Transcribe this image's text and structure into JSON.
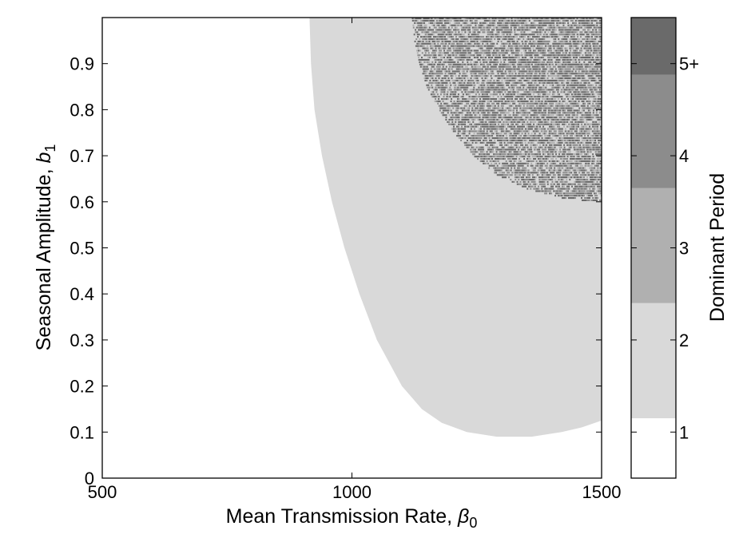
{
  "chart_data": {
    "type": "heatmap",
    "title": "",
    "xlabel": "Mean Transmission Rate, ",
    "xlabel_symbol": "β",
    "xlabel_subscript": "0",
    "ylabel": "Seasonal Amplitude, ",
    "ylabel_symbol": "b",
    "ylabel_subscript": "1",
    "xlim": [
      500,
      1500
    ],
    "ylim": [
      0,
      1
    ],
    "xticks": [
      500,
      1000,
      1500
    ],
    "xtick_labels": [
      "500",
      "1000",
      "1500"
    ],
    "yticks": [
      0,
      0.1,
      0.2,
      0.3,
      0.4,
      0.5,
      0.6,
      0.7,
      0.8,
      0.9
    ],
    "ytick_labels": [
      "0",
      "0.1",
      "0.2",
      "0.3",
      "0.4",
      "0.5",
      "0.6",
      "0.7",
      "0.8",
      "0.9"
    ],
    "grid": false,
    "colorbar": {
      "label": "Dominant Period",
      "ticks": [
        1,
        2,
        3,
        4,
        5
      ],
      "tick_labels": [
        "1",
        "2",
        "3",
        "4",
        "5+"
      ],
      "colors": [
        "#ffffff",
        "#d9d9d9",
        "#b0b0b0",
        "#8c8c8c",
        "#6a6a6a"
      ]
    },
    "regions": [
      {
        "period": 1,
        "description_boundary": "outside the period-2 boundary"
      },
      {
        "period": 2,
        "boundary_b1_vs_b0": {
          "b1": [
            1.0,
            0.9,
            0.8,
            0.7,
            0.6,
            0.5,
            0.4,
            0.3,
            0.2,
            0.15,
            0.12,
            0.1,
            0.09,
            0.09,
            0.1,
            0.11,
            0.125
          ],
          "b0": [
            915,
            918,
            925,
            940,
            960,
            985,
            1015,
            1050,
            1100,
            1140,
            1180,
            1230,
            1290,
            1360,
            1420,
            1460,
            1500
          ]
        }
      },
      {
        "period": "mixed (4 / 5+)",
        "boundary_b1_vs_b0": {
          "b1": [
            1.0,
            0.95,
            0.9,
            0.85,
            0.8,
            0.75,
            0.7,
            0.66,
            0.63,
            0.61,
            0.6
          ],
          "b0": [
            1120,
            1125,
            1135,
            1150,
            1175,
            1205,
            1245,
            1290,
            1350,
            1420,
            1500
          ]
        }
      }
    ]
  }
}
